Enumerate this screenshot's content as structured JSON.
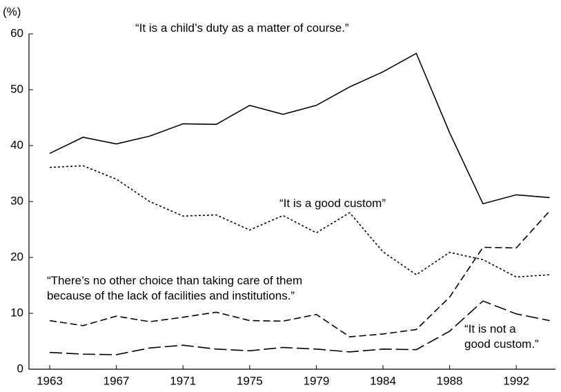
{
  "chart_data": {
    "type": "line",
    "y_label": "(%)",
    "categories": [
      "1963",
      null,
      "1967",
      null,
      "1971",
      null,
      "1975",
      null,
      "1979",
      null,
      "1984",
      null,
      "1988",
      null,
      "1992",
      null
    ],
    "ylim": [
      0,
      60
    ],
    "yticks": [
      0,
      10,
      20,
      30,
      40,
      50,
      60
    ],
    "series": [
      {
        "name": "“It is a child’s duty as a matter of course.”",
        "color": "#000000",
        "linestyle": "solid",
        "values": [
          38.6,
          41.5,
          40.3,
          41.7,
          43.9,
          43.8,
          47.2,
          45.6,
          47.2,
          50.5,
          53.2,
          56.5,
          42.3,
          29.6,
          31.2,
          30.7
        ]
      },
      {
        "name": "“It is a good custom”",
        "color": "#000000",
        "linestyle": "dotted",
        "values": [
          36.1,
          36.4,
          34.0,
          30.0,
          27.4,
          27.6,
          24.9,
          27.5,
          24.4,
          28.0,
          21.0,
          16.9,
          20.9,
          19.6,
          16.5,
          16.9
        ]
      },
      {
        "name": "“There’s no other choice than taking care of them\nbecause of the lack of facilities and institutions.”",
        "color": "#000000",
        "linestyle": "dashed",
        "values": [
          8.7,
          7.8,
          9.5,
          8.5,
          9.3,
          10.2,
          8.7,
          8.6,
          9.8,
          5.8,
          6.3,
          7.1,
          12.9,
          21.8,
          21.7,
          28.3
        ]
      },
      {
        "name": "“It is not a\ngood custom.”",
        "color": "#000000",
        "linestyle": "longdash",
        "values": [
          3.0,
          2.7,
          2.6,
          3.8,
          4.3,
          3.6,
          3.3,
          3.9,
          3.6,
          3.1,
          3.6,
          3.5,
          6.8,
          12.2,
          9.9,
          8.7
        ]
      }
    ]
  }
}
